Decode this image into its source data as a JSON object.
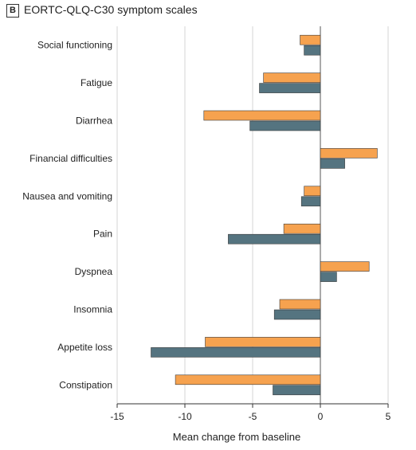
{
  "panel": {
    "label": "B",
    "title": "EORTC-QLQ-C30 symptom scales"
  },
  "chart_data": {
    "type": "bar",
    "orientation": "horizontal",
    "title": "EORTC-QLQ-C30 symptom scales",
    "xlabel": "Mean change from baseline",
    "ylabel": "",
    "xlim": [
      -15,
      5
    ],
    "xticks": [
      -15,
      -10,
      -5,
      0,
      5
    ],
    "grid": "vertical",
    "categories": [
      "Social functioning",
      "Fatigue",
      "Diarrhea",
      "Financial difficulties",
      "Nausea and vomiting",
      "Pain",
      "Dyspnea",
      "Insomnia",
      "Appetite loss",
      "Constipation"
    ],
    "series": [
      {
        "color": "#f6a24f",
        "values": [
          -1.5,
          -4.2,
          -8.6,
          4.2,
          -1.2,
          -2.7,
          3.6,
          -3.0,
          -8.5,
          -10.7
        ]
      },
      {
        "color": "#557480",
        "values": [
          -1.2,
          -4.5,
          -5.2,
          1.8,
          -1.4,
          -6.8,
          1.2,
          -3.4,
          -12.5,
          -3.5
        ]
      }
    ]
  }
}
